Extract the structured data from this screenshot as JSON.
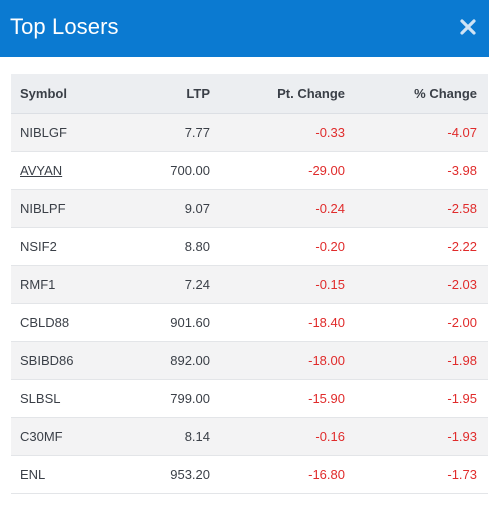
{
  "header": {
    "title": "Top Losers",
    "close_icon": "close-icon"
  },
  "table": {
    "columns": [
      "Symbol",
      "LTP",
      "Pt. Change",
      "% Change"
    ],
    "rows": [
      {
        "symbol": "NIBLGF",
        "ltp": "7.77",
        "pt_change": "-0.33",
        "pct_change": "-4.07",
        "link": false
      },
      {
        "symbol": "AVYAN",
        "ltp": "700.00",
        "pt_change": "-29.00",
        "pct_change": "-3.98",
        "link": true
      },
      {
        "symbol": "NIBLPF",
        "ltp": "9.07",
        "pt_change": "-0.24",
        "pct_change": "-2.58",
        "link": false
      },
      {
        "symbol": "NSIF2",
        "ltp": "8.80",
        "pt_change": "-0.20",
        "pct_change": "-2.22",
        "link": false
      },
      {
        "symbol": "RMF1",
        "ltp": "7.24",
        "pt_change": "-0.15",
        "pct_change": "-2.03",
        "link": false
      },
      {
        "symbol": "CBLD88",
        "ltp": "901.60",
        "pt_change": "-18.40",
        "pct_change": "-2.00",
        "link": false
      },
      {
        "symbol": "SBIBD86",
        "ltp": "892.00",
        "pt_change": "-18.00",
        "pct_change": "-1.98",
        "link": false
      },
      {
        "symbol": "SLBSL",
        "ltp": "799.00",
        "pt_change": "-15.90",
        "pct_change": "-1.95",
        "link": false
      },
      {
        "symbol": "C30MF",
        "ltp": "8.14",
        "pt_change": "-0.16",
        "pct_change": "-1.93",
        "link": false
      },
      {
        "symbol": "ENL",
        "ltp": "953.20",
        "pt_change": "-16.80",
        "pct_change": "-1.73",
        "link": false
      }
    ]
  },
  "colors": {
    "header_bg": "#0b7ad1",
    "negative": "#e02b2b",
    "row_stripe": "#f3f3f4",
    "table_header_bg": "#eceef1"
  }
}
